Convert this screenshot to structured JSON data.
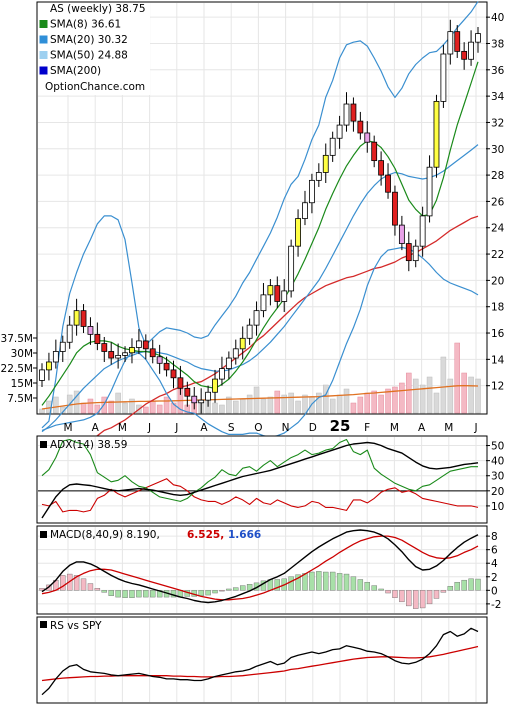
{
  "chart_data": [
    {
      "type": "candlestick",
      "panel": "price",
      "legend": [
        {
          "label": "AS (weekly) 38.75",
          "color": "#ffffff"
        },
        {
          "label": "SMA(8) 36.61",
          "color": "#1a8a1a"
        },
        {
          "label": "SMA(20) 30.32",
          "color": "#2f8fd8"
        },
        {
          "label": "SMA(50) 24.88",
          "color": "#9ed0f0"
        },
        {
          "label": "SMA(200)",
          "color": "#0000cc"
        }
      ],
      "watermark": "OptionChance.com",
      "x_tick_labels": [
        "M",
        "A",
        "M",
        "J",
        "J",
        "A",
        "S",
        "O",
        "N",
        "D",
        "25",
        "F",
        "M",
        "A",
        "M",
        "J"
      ],
      "y_tick_labels": [
        "12",
        "14",
        "16",
        "18",
        "20",
        "22",
        "24",
        "26",
        "28",
        "30",
        "32",
        "34",
        "36",
        "38",
        "40"
      ],
      "ylim": [
        10,
        41
      ],
      "close": [
        13.2,
        13.8,
        14.6,
        15.3,
        16.6,
        17.7,
        16.5,
        15.9,
        15.2,
        14.6,
        14.1,
        14.3,
        14.5,
        14.9,
        15.4,
        14.8,
        14.2,
        13.7,
        13.2,
        12.6,
        11.8,
        11.2,
        10.7,
        10.9,
        11.5,
        12.5,
        13.3,
        14.1,
        14.8,
        15.6,
        16.6,
        17.7,
        18.9,
        19.6,
        18.4,
        19.2,
        22.6,
        24.7,
        25.9,
        27.6,
        28.2,
        29.5,
        30.8,
        31.8,
        33.4,
        32.1,
        31.2,
        30.5,
        29.1,
        28.0,
        26.7,
        24.2,
        22.8,
        21.5,
        22.6,
        24.9,
        28.6,
        33.6,
        37.2,
        38.9,
        37.4,
        36.8,
        38.1,
        38.75
      ],
      "sma8": [
        10.5,
        11.2,
        12.0,
        12.8,
        13.6,
        14.5,
        15.0,
        15.3,
        15.4,
        15.4,
        15.3,
        15.0,
        14.8,
        14.7,
        14.6,
        14.6,
        14.5,
        14.3,
        14.0,
        13.6,
        13.2,
        12.8,
        12.3,
        12.0,
        11.9,
        11.8,
        12.1,
        12.5,
        13.1,
        13.8,
        14.6,
        15.5,
        16.4,
        17.2,
        17.9,
        18.6,
        19.5,
        20.5,
        21.6,
        22.8,
        24.0,
        25.4,
        26.6,
        27.7,
        28.7,
        29.5,
        30.2,
        30.6,
        30.5,
        30.1,
        29.4,
        28.5,
        27.3,
        26.1,
        25.4,
        24.9,
        25.0,
        26.1,
        27.8,
        29.9,
        31.8,
        33.4,
        35.0,
        36.61
      ],
      "sma20": [
        8.5,
        8.9,
        9.4,
        10.0,
        10.6,
        11.2,
        11.8,
        12.3,
        12.8,
        13.3,
        13.6,
        13.9,
        14.1,
        14.3,
        14.5,
        14.6,
        14.6,
        14.5,
        14.4,
        14.2,
        14.0,
        13.8,
        13.5,
        13.3,
        13.2,
        13.1,
        13.1,
        13.2,
        13.4,
        13.6,
        13.9,
        14.3,
        14.8,
        15.3,
        15.9,
        16.5,
        17.2,
        17.9,
        18.6,
        19.3,
        20.0,
        20.9,
        21.9,
        22.9,
        23.9,
        24.9,
        25.8,
        26.6,
        27.2,
        27.7,
        28.0,
        28.2,
        28.1,
        27.9,
        27.8,
        27.7,
        27.8,
        28.0,
        28.3,
        28.7,
        29.1,
        29.5,
        29.9,
        30.32
      ],
      "bb_upper": [
        8.8,
        9.3,
        12.5,
        16.5,
        19.0,
        20.6,
        22.0,
        23.1,
        24.3,
        24.9,
        24.9,
        24.6,
        23.1,
        19.8,
        16.4,
        15.1,
        15.6,
        16.1,
        16.4,
        16.3,
        16.2,
        16.0,
        15.7,
        15.6,
        15.8,
        16.6,
        17.3,
        18.0,
        18.8,
        19.8,
        20.6,
        21.6,
        22.6,
        23.6,
        24.8,
        26.2,
        27.3,
        27.9,
        29.2,
        30.7,
        31.8,
        33.9,
        35.2,
        36.9,
        37.9,
        38.1,
        38.2,
        37.8,
        36.9,
        35.9,
        34.7,
        33.9,
        34.6,
        35.7,
        36.4,
        36.9,
        37.3,
        37.4,
        37.9,
        38.5,
        39.2,
        39.8,
        40.4,
        41.2
      ],
      "bb_lower": [
        8.6,
        8.8,
        9.0,
        9.1,
        9.2,
        9.3,
        9.4,
        9.6,
        9.9,
        10.6,
        11.6,
        12.8,
        13.9,
        14.6,
        14.5,
        14.0,
        13.2,
        12.4,
        11.4,
        10.6,
        10.2,
        10.0,
        9.9,
        9.5,
        9.1,
        8.8,
        8.5,
        8.3,
        8.3,
        8.3,
        8.4,
        8.4,
        8.2,
        8.1,
        8.2,
        8.4,
        8.8,
        9.2,
        9.8,
        10.6,
        11.1,
        11.3,
        12.4,
        13.8,
        15.2,
        16.4,
        17.8,
        19.6,
        20.9,
        21.8,
        22.3,
        22.4,
        22.5,
        22.4,
        22.1,
        21.7,
        21.2,
        20.6,
        20.1,
        19.8,
        19.6,
        19.4,
        19.2,
        18.9
      ],
      "sma50": [
        5.5,
        5.8,
        6.2,
        6.5,
        6.8,
        7.2,
        7.5,
        7.8,
        8.2,
        8.6,
        8.8,
        9.1,
        9.4,
        9.8,
        10.2,
        10.6,
        10.9,
        11.2,
        11.4,
        11.7,
        11.9,
        12.0,
        12.2,
        12.3,
        12.6,
        12.9,
        13.3,
        13.7,
        14.1,
        14.5,
        14.9,
        15.4,
        15.8,
        16.3,
        16.8,
        17.3,
        17.8,
        18.3,
        18.7,
        19.0,
        19.3,
        19.6,
        19.8,
        20.0,
        20.2,
        20.3,
        20.5,
        20.7,
        20.9,
        21.0,
        21.2,
        21.4,
        21.7,
        21.9,
        22.1,
        22.4,
        22.7,
        23.0,
        23.4,
        23.8,
        24.1,
        24.4,
        24.7,
        24.88
      ],
      "volume_axis": {
        "labels": [
          "7.5M",
          "15M",
          "22.5M",
          "30M",
          "37.5M"
        ],
        "values": [
          7.5,
          15,
          22.5,
          30,
          37.5
        ],
        "ylim": [
          0,
          50
        ]
      },
      "volume": [
        2,
        6,
        8,
        3,
        9,
        11,
        5,
        7,
        4,
        8,
        6,
        10,
        5,
        7,
        4,
        3,
        6,
        4,
        8,
        5,
        12,
        4,
        7,
        6,
        9,
        5,
        4,
        8,
        6,
        7,
        9,
        13,
        7,
        8,
        11,
        9,
        10,
        6,
        9,
        8,
        10,
        14,
        7,
        9,
        12,
        5,
        8,
        10,
        11,
        9,
        12,
        13,
        15,
        20,
        17,
        14,
        18,
        10,
        28,
        17,
        35,
        20,
        18,
        17
      ],
      "volume_ma": [
        2,
        2.5,
        3,
        3.5,
        4,
        4.5,
        4.8,
        5,
        5.2,
        5.3,
        5.4,
        5.5,
        5.6,
        5.7,
        5.8,
        5.8,
        5.9,
        6,
        6,
        6.1,
        6.2,
        6.3,
        6.4,
        6.5,
        6.6,
        6.7,
        6.8,
        6.9,
        7,
        7.1,
        7.2,
        7.3,
        7.4,
        7.5,
        7.6,
        7.7,
        7.8,
        7.9,
        8,
        8.1,
        8.2,
        8.4,
        8.6,
        8.8,
        9,
        9.2,
        9.5,
        9.8,
        10,
        10.3,
        10.6,
        10.9,
        11.2,
        11.5,
        11.8,
        12.1,
        12.4,
        12.7,
        13,
        13.3,
        13.6,
        13.7,
        13.6,
        13.5
      ]
    },
    {
      "type": "line",
      "panel": "adx",
      "legend": [
        {
          "label": "ADX(14) 38.59",
          "color": "#000000"
        }
      ],
      "y_tick_labels": [
        "10",
        "20",
        "30",
        "40",
        "50"
      ],
      "ylim": [
        0,
        55
      ],
      "reference_lines": [
        20
      ],
      "adx": [
        2,
        9,
        16,
        21,
        24,
        24.5,
        24,
        23.5,
        22.5,
        21.5,
        20.5,
        20,
        20.5,
        21,
        21.5,
        21,
        20.5,
        19.5,
        18.5,
        17.5,
        17,
        17.5,
        19,
        20.5,
        22,
        23.5,
        25,
        26.5,
        28,
        29.5,
        30.5,
        31.5,
        32.5,
        33.5,
        35,
        36.5,
        38,
        39.5,
        41,
        42.5,
        44,
        45.5,
        47,
        48.5,
        50,
        51,
        51.5,
        52,
        51.5,
        50,
        48,
        46.5,
        45,
        42,
        39,
        36.5,
        35,
        34.5,
        35,
        35.5,
        36.5,
        37.5,
        38,
        38.59
      ],
      "plus_di": [
        30,
        34,
        42,
        53,
        54,
        52,
        51,
        44,
        32,
        29,
        26,
        27,
        30,
        26,
        23,
        22,
        19,
        16,
        15,
        14,
        13,
        15,
        19,
        22,
        26,
        29,
        34,
        31,
        30,
        35,
        36,
        33,
        37,
        40,
        36,
        39,
        42,
        44,
        47,
        44,
        45,
        47,
        48,
        52,
        54,
        46,
        44,
        47,
        35,
        31,
        28,
        25,
        23,
        21,
        20,
        23,
        24,
        27,
        30,
        33,
        34,
        35,
        36,
        36
      ],
      "minus_di": [
        11,
        10,
        13,
        6,
        7,
        7,
        6,
        7,
        15,
        17,
        21,
        18,
        16,
        18,
        20,
        22,
        24,
        26,
        28,
        24,
        23,
        20,
        16,
        14,
        13,
        13,
        11,
        13,
        16,
        14,
        11,
        15,
        12,
        11,
        14,
        12,
        10,
        9,
        10,
        13,
        12,
        9,
        9,
        8,
        7,
        14,
        14,
        12,
        15,
        19,
        21,
        22,
        19,
        20,
        18,
        15,
        14,
        13,
        12,
        11,
        10,
        10,
        10,
        9
      ]
    },
    {
      "type": "bar",
      "panel": "macd",
      "legend": [
        {
          "label": "MACD(8,40,9) 8.190,",
          "color": "#000000"
        },
        {
          "label": "6.525,",
          "color": "#cc0000"
        },
        {
          "label": "1.666",
          "color": "#2050c8"
        }
      ],
      "y_tick_labels": [
        "-2",
        "0",
        "2",
        "4",
        "6",
        "8"
      ],
      "ylim": [
        -3.2,
        9.2
      ],
      "macd": [
        -0.2,
        0.5,
        1.5,
        2.8,
        3.7,
        4.2,
        4.2,
        3.9,
        3.4,
        2.8,
        2.2,
        1.7,
        1.3,
        1.0,
        0.8,
        0.5,
        0.2,
        -0.1,
        -0.4,
        -0.7,
        -1.0,
        -1.2,
        -1.5,
        -1.7,
        -1.8,
        -1.7,
        -1.5,
        -1.2,
        -0.9,
        -0.5,
        -0.1,
        0.4,
        1.0,
        1.6,
        2.0,
        2.5,
        3.3,
        4.1,
        4.9,
        5.7,
        6.4,
        7.0,
        7.6,
        8.1,
        8.6,
        8.8,
        8.9,
        8.8,
        8.6,
        8.2,
        7.6,
        6.7,
        5.7,
        4.5,
        3.5,
        3.0,
        3.1,
        3.6,
        4.4,
        5.4,
        6.3,
        7.1,
        7.7,
        8.19
      ],
      "signal": [
        -0.5,
        -0.3,
        0.0,
        0.6,
        1.3,
        2.0,
        2.5,
        2.9,
        3.1,
        3.1,
        3.0,
        2.7,
        2.4,
        2.1,
        1.8,
        1.5,
        1.2,
        0.9,
        0.6,
        0.3,
        0.0,
        -0.3,
        -0.6,
        -0.9,
        -1.1,
        -1.3,
        -1.4,
        -1.4,
        -1.3,
        -1.2,
        -1.0,
        -0.7,
        -0.4,
        0.0,
        0.4,
        0.8,
        1.3,
        1.8,
        2.4,
        3.0,
        3.6,
        4.3,
        4.9,
        5.6,
        6.2,
        6.8,
        7.3,
        7.6,
        7.9,
        8.0,
        8.0,
        7.8,
        7.4,
        6.8,
        6.2,
        5.6,
        5.1,
        4.8,
        4.7,
        4.8,
        5.1,
        5.6,
        6.0,
        6.525
      ],
      "histogram": [
        0.3,
        0.8,
        1.5,
        2.2,
        2.4,
        2.2,
        1.7,
        1.0,
        0.3,
        -0.3,
        -0.8,
        -1.0,
        -1.1,
        -1.1,
        -1.0,
        -1.0,
        -1.0,
        -1.0,
        -1.0,
        -1.0,
        -1.0,
        -0.9,
        -0.9,
        -0.8,
        -0.7,
        -0.4,
        -0.1,
        0.2,
        0.4,
        0.7,
        0.9,
        1.1,
        1.4,
        1.6,
        1.6,
        1.7,
        2.0,
        2.3,
        2.5,
        2.7,
        2.8,
        2.7,
        2.7,
        2.5,
        2.4,
        2.0,
        1.6,
        1.2,
        0.7,
        0.2,
        -0.4,
        -1.1,
        -1.7,
        -2.3,
        -2.7,
        -2.6,
        -2.0,
        -1.2,
        -0.3,
        0.6,
        1.2,
        1.5,
        1.7,
        1.666
      ]
    },
    {
      "type": "line",
      "panel": "rs",
      "legend": [
        {
          "label": "RS vs SPY",
          "color": "#000000"
        }
      ],
      "ylim": [
        0,
        100
      ],
      "rs": [
        8,
        16,
        28,
        38,
        44,
        46,
        40,
        37,
        36,
        35,
        33,
        32,
        33,
        34,
        35,
        33,
        31,
        30,
        28,
        28,
        27,
        27,
        26,
        26,
        28,
        31,
        33,
        35,
        37,
        38,
        40,
        44,
        47,
        50,
        46,
        48,
        55,
        58,
        60,
        62,
        60,
        62,
        65,
        66,
        70,
        68,
        66,
        63,
        62,
        60,
        56,
        51,
        48,
        47,
        49,
        53,
        60,
        70,
        84,
        88,
        82,
        85,
        92,
        88
      ],
      "rs_ma": [
        26,
        27,
        28,
        29,
        29.5,
        30,
        30.5,
        31,
        31,
        31.5,
        31.5,
        32,
        32,
        32,
        32,
        32,
        32,
        32,
        32,
        31.5,
        31.5,
        31,
        31,
        30.5,
        30.5,
        30.5,
        31,
        31,
        31.5,
        32,
        33,
        34,
        35,
        36,
        37,
        38,
        40,
        41,
        42.5,
        44,
        45.5,
        47,
        48.5,
        50,
        51.5,
        53,
        54,
        55,
        55.5,
        56,
        56,
        55.5,
        55,
        54.5,
        54.5,
        55,
        56,
        57.5,
        59,
        61,
        63,
        65,
        67,
        69
      ]
    }
  ]
}
